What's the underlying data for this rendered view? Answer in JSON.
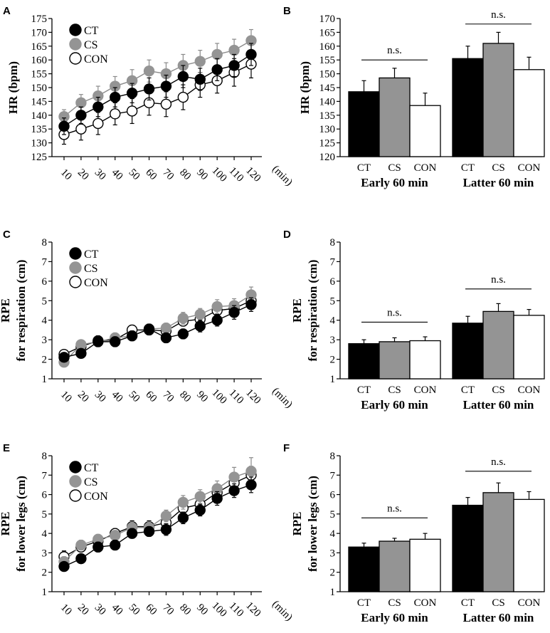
{
  "panel_labels": [
    "A",
    "B",
    "C",
    "D",
    "E",
    "F"
  ],
  "colors": {
    "CT": "#000000",
    "CS": "#949494",
    "CON": "#ffffff",
    "stroke": "#000000",
    "cs_line": "#8a8a8a"
  },
  "chart_data": [
    {
      "id": "A",
      "type": "line",
      "ylabel": "HR (bpm)",
      "ylabel2": "",
      "xlabel": "(min)",
      "ylim": [
        125,
        175
      ],
      "yticks": [
        125,
        130,
        135,
        140,
        145,
        150,
        155,
        160,
        165,
        170,
        175
      ],
      "x": [
        10,
        20,
        30,
        40,
        50,
        60,
        70,
        80,
        90,
        100,
        110,
        120
      ],
      "xtick_labels": [
        "10",
        "20",
        "30",
        "40",
        "50",
        "60",
        "70",
        "80",
        "90",
        "100",
        "110",
        "120"
      ],
      "legend": [
        "CT",
        "CS",
        "CON"
      ],
      "series": [
        {
          "name": "CT",
          "values": [
            136,
            140,
            143,
            146.5,
            148,
            149.5,
            150.5,
            154,
            153,
            156.5,
            158,
            162
          ],
          "err": [
            3,
            3,
            3.5,
            3.5,
            3.5,
            4,
            4,
            4,
            4,
            4,
            4,
            4
          ]
        },
        {
          "name": "CS",
          "values": [
            139.5,
            144.5,
            147,
            150.5,
            152.5,
            156,
            155,
            158,
            159.5,
            162,
            163.5,
            167
          ],
          "err": [
            2.5,
            3,
            3.5,
            3.5,
            4,
            4,
            4,
            4,
            4,
            4,
            4,
            4
          ]
        },
        {
          "name": "CON",
          "values": [
            133,
            135,
            137,
            140.5,
            141.5,
            144.5,
            144,
            146.5,
            151,
            152.5,
            155.5,
            158.5
          ],
          "err": [
            3.5,
            4,
            4,
            4,
            4.5,
            4.5,
            4.5,
            4.5,
            4.5,
            4.5,
            5,
            5
          ]
        }
      ]
    },
    {
      "id": "B",
      "type": "bar",
      "ylabel": "HR (bpm)",
      "ylabel2": "",
      "ylim": [
        120,
        170
      ],
      "yticks": [
        120,
        125,
        130,
        135,
        140,
        145,
        150,
        155,
        160,
        165,
        170
      ],
      "categories": [
        "CT",
        "CS",
        "CON"
      ],
      "groups": [
        {
          "name": "Early 60 min",
          "values": [
            143.5,
            148.5,
            138.5
          ],
          "err": [
            4,
            3.5,
            4.5
          ],
          "sig": "n.s.",
          "sig_y": 155
        },
        {
          "name": "Latter 60 min",
          "values": [
            155.5,
            161,
            151.5
          ],
          "err": [
            4.5,
            4,
            4.5
          ],
          "sig": "n.s.",
          "sig_y": 168
        }
      ]
    },
    {
      "id": "C",
      "type": "line",
      "ylabel": "RPE",
      "ylabel2": "for respiration (cm)",
      "xlabel": "(min)",
      "ylim": [
        1,
        8
      ],
      "yticks": [
        1,
        2,
        3,
        4,
        5,
        6,
        7,
        8
      ],
      "x": [
        10,
        20,
        30,
        40,
        50,
        60,
        70,
        80,
        90,
        100,
        110,
        120
      ],
      "xtick_labels": [
        "10",
        "20",
        "30",
        "40",
        "50",
        "60",
        "70",
        "80",
        "90",
        "100",
        "110",
        "120"
      ],
      "legend": [
        "CT",
        "CS",
        "CON"
      ],
      "series": [
        {
          "name": "CT",
          "values": [
            2.1,
            2.3,
            2.9,
            2.9,
            3.2,
            3.55,
            3.1,
            3.3,
            3.7,
            4.0,
            4.4,
            4.8
          ],
          "err": [
            0.2,
            0.2,
            0.25,
            0.25,
            0.25,
            0.25,
            0.25,
            0.25,
            0.3,
            0.3,
            0.35,
            0.35
          ]
        },
        {
          "name": "CS",
          "values": [
            1.85,
            2.75,
            2.9,
            3.1,
            3.2,
            3.55,
            3.6,
            4.1,
            4.3,
            4.7,
            4.75,
            5.3
          ],
          "err": [
            0.2,
            0.2,
            0.25,
            0.25,
            0.25,
            0.25,
            0.25,
            0.3,
            0.3,
            0.35,
            0.35,
            0.4
          ]
        },
        {
          "name": "CON",
          "values": [
            2.25,
            2.65,
            2.95,
            3.0,
            3.5,
            3.5,
            3.45,
            3.95,
            4.05,
            4.5,
            4.6,
            5.0
          ],
          "err": [
            0.2,
            0.2,
            0.25,
            0.25,
            0.25,
            0.25,
            0.25,
            0.25,
            0.3,
            0.3,
            0.35,
            0.35
          ]
        }
      ]
    },
    {
      "id": "D",
      "type": "bar",
      "ylabel": "RPE",
      "ylabel2": "for respiration (cm)",
      "ylim": [
        1,
        8
      ],
      "yticks": [
        1,
        2,
        3,
        4,
        5,
        6,
        7,
        8
      ],
      "categories": [
        "CT",
        "CS",
        "CON"
      ],
      "groups": [
        {
          "name": "Early 60 min",
          "values": [
            2.8,
            2.9,
            2.95
          ],
          "err": [
            0.2,
            0.2,
            0.2
          ],
          "sig": "n.s.",
          "sig_y": 3.9
        },
        {
          "name": "Latter 60 min",
          "values": [
            3.85,
            4.45,
            4.25
          ],
          "err": [
            0.35,
            0.4,
            0.3
          ],
          "sig": "n.s.",
          "sig_y": 5.6
        }
      ]
    },
    {
      "id": "E",
      "type": "line",
      "ylabel": "RPE",
      "ylabel2": "for lower legs (cm)",
      "xlabel": "(min)",
      "ylim": [
        1,
        8
      ],
      "yticks": [
        1,
        2,
        3,
        4,
        5,
        6,
        7,
        8
      ],
      "x": [
        10,
        20,
        30,
        40,
        50,
        60,
        70,
        80,
        90,
        100,
        110,
        120
      ],
      "xtick_labels": [
        "10",
        "20",
        "30",
        "40",
        "50",
        "60",
        "70",
        "80",
        "90",
        "100",
        "110",
        "120"
      ],
      "legend": [
        "CT",
        "CS",
        "CON"
      ],
      "series": [
        {
          "name": "CT",
          "values": [
            2.3,
            2.7,
            3.3,
            3.4,
            4.0,
            4.1,
            4.2,
            4.8,
            5.2,
            5.8,
            6.2,
            6.5
          ],
          "err": [
            0.2,
            0.2,
            0.25,
            0.25,
            0.25,
            0.25,
            0.3,
            0.3,
            0.3,
            0.35,
            0.35,
            0.4
          ]
        },
        {
          "name": "CS",
          "values": [
            2.55,
            3.4,
            3.7,
            3.9,
            4.3,
            4.3,
            4.9,
            5.6,
            5.9,
            6.3,
            6.9,
            7.2
          ],
          "err": [
            0.25,
            0.25,
            0.25,
            0.25,
            0.3,
            0.3,
            0.3,
            0.35,
            0.35,
            0.4,
            0.5,
            0.7
          ]
        },
        {
          "name": "CON",
          "values": [
            2.8,
            3.3,
            3.6,
            4.0,
            4.35,
            4.35,
            4.55,
            5.3,
            5.5,
            6.1,
            6.6,
            7.0
          ],
          "err": [
            0.3,
            0.25,
            0.25,
            0.25,
            0.3,
            0.3,
            0.3,
            0.35,
            0.35,
            0.4,
            0.4,
            0.45
          ]
        }
      ]
    },
    {
      "id": "F",
      "type": "bar",
      "ylabel": "RPE",
      "ylabel2": "for lower legs (cm)",
      "ylim": [
        1,
        8
      ],
      "yticks": [
        1,
        2,
        3,
        4,
        5,
        6,
        7,
        8
      ],
      "categories": [
        "CT",
        "CS",
        "CON"
      ],
      "groups": [
        {
          "name": "Early 60 min",
          "values": [
            3.3,
            3.6,
            3.7
          ],
          "err": [
            0.2,
            0.15,
            0.3
          ],
          "sig": "n.s.",
          "sig_y": 4.8
        },
        {
          "name": "Latter 60 min",
          "values": [
            5.45,
            6.1,
            5.75
          ],
          "err": [
            0.4,
            0.5,
            0.4
          ],
          "sig": "n.s.",
          "sig_y": 7.2
        }
      ]
    }
  ]
}
